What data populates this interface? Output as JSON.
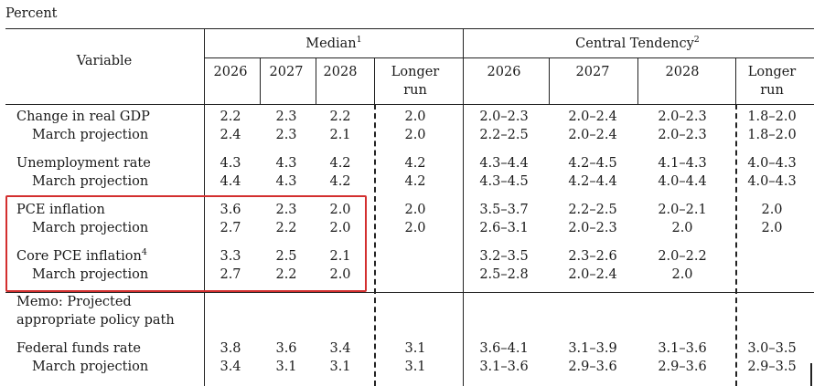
{
  "unit_label": "Percent",
  "header": {
    "variable_label": "Variable",
    "median_label": "Median",
    "median_note": "1",
    "central_label": "Central Tendency",
    "central_note": "2",
    "years": [
      "2026",
      "2027",
      "2028"
    ],
    "longer_run_line1": "Longer",
    "longer_run_line2": "run"
  },
  "rows": [
    {
      "label": "Change in real GDP",
      "note": "",
      "indent": false,
      "median": [
        "2.2",
        "2.3",
        "2.2"
      ],
      "median_lr": "2.0",
      "ct": [
        "2.0–2.3",
        "2.0–2.4",
        "2.0–2.3"
      ],
      "ct_lr": "1.8–2.0"
    },
    {
      "label": "March projection",
      "note": "",
      "indent": true,
      "median": [
        "2.4",
        "2.3",
        "2.1"
      ],
      "median_lr": "2.0",
      "ct": [
        "2.2–2.5",
        "2.0–2.4",
        "2.0–2.3"
      ],
      "ct_lr": "1.8–2.0"
    },
    {
      "label": "Unemployment rate",
      "note": "",
      "indent": false,
      "median": [
        "4.3",
        "4.3",
        "4.2"
      ],
      "median_lr": "4.2",
      "ct": [
        "4.3–4.4",
        "4.2–4.5",
        "4.1–4.3"
      ],
      "ct_lr": "4.0–4.3"
    },
    {
      "label": "March projection",
      "note": "",
      "indent": true,
      "median": [
        "4.4",
        "4.3",
        "4.2"
      ],
      "median_lr": "4.2",
      "ct": [
        "4.3–4.5",
        "4.2–4.4",
        "4.0–4.4"
      ],
      "ct_lr": "4.0–4.3"
    },
    {
      "label": "PCE inflation",
      "note": "",
      "indent": false,
      "median": [
        "3.6",
        "2.3",
        "2.0"
      ],
      "median_lr": "2.0",
      "ct": [
        "3.5–3.7",
        "2.2–2.5",
        "2.0–2.1"
      ],
      "ct_lr": "2.0"
    },
    {
      "label": "March projection",
      "note": "",
      "indent": true,
      "median": [
        "2.7",
        "2.2",
        "2.0"
      ],
      "median_lr": "2.0",
      "ct": [
        "2.6–3.1",
        "2.0–2.3",
        "2.0"
      ],
      "ct_lr": "2.0"
    },
    {
      "label": "Core PCE inflation",
      "note": "4",
      "indent": false,
      "median": [
        "3.3",
        "2.5",
        "2.1"
      ],
      "median_lr": "",
      "ct": [
        "3.2–3.5",
        "2.3–2.6",
        "2.0–2.2"
      ],
      "ct_lr": ""
    },
    {
      "label": "March projection",
      "note": "",
      "indent": true,
      "median": [
        "2.7",
        "2.2",
        "2.0"
      ],
      "median_lr": "",
      "ct": [
        "2.5–2.8",
        "2.0–2.4",
        "2.0"
      ],
      "ct_lr": ""
    },
    {
      "label": "Federal funds rate",
      "note": "",
      "indent": false,
      "median": [
        "3.8",
        "3.6",
        "3.4"
      ],
      "median_lr": "3.1",
      "ct": [
        "3.6–4.1",
        "3.1–3.9",
        "3.1–3.6"
      ],
      "ct_lr": "3.0–3.5"
    },
    {
      "label": "March projection",
      "note": "",
      "indent": true,
      "median": [
        "3.4",
        "3.1",
        "3.1"
      ],
      "median_lr": "3.1",
      "ct": [
        "3.1–3.6",
        "2.9–3.6",
        "2.9–3.6"
      ],
      "ct_lr": "2.9–3.5"
    }
  ],
  "memo": {
    "line1": "Memo: Projected",
    "line2": "appropriate policy path"
  },
  "highlight_color": "#d32f2f"
}
